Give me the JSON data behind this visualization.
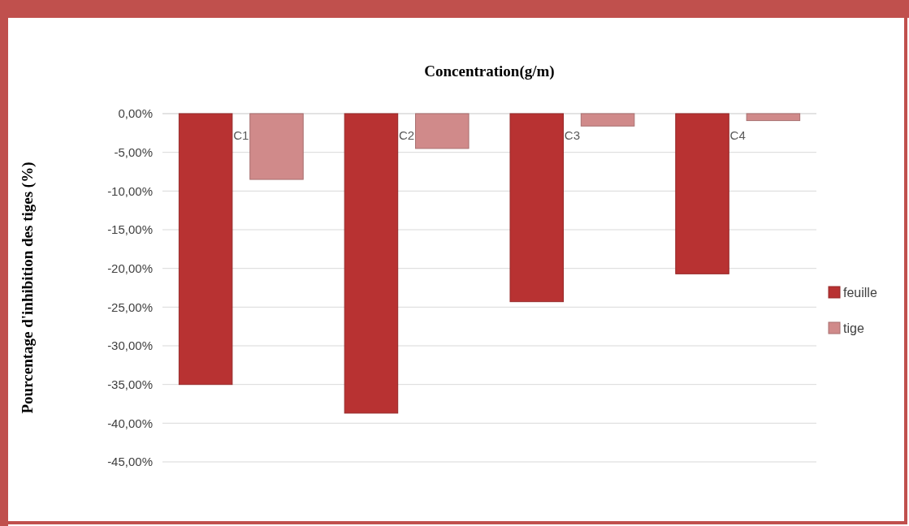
{
  "chart_data": {
    "type": "bar",
    "title": "Concentration(g/m)",
    "ylabel": "Pourcentage d'inhibition des tiges (%)",
    "categories": [
      "C1",
      "C2",
      "C3",
      "C4"
    ],
    "series": [
      {
        "name": "feuille",
        "color": "#b83232",
        "values": [
          -35.0,
          -38.7,
          -24.3,
          -20.7
        ]
      },
      {
        "name": "tige",
        "color": "#d08a8a",
        "values": [
          -8.5,
          -4.5,
          -1.6,
          -0.9
        ]
      }
    ],
    "ylim": [
      -45,
      0
    ],
    "yticks": [
      {
        "value": 0,
        "label": "0,00%"
      },
      {
        "value": -5,
        "label": "-5,00%"
      },
      {
        "value": -10,
        "label": "-10,00%"
      },
      {
        "value": -15,
        "label": "-15,00%"
      },
      {
        "value": -20,
        "label": "-20,00%"
      },
      {
        "value": -25,
        "label": "-25,00%"
      },
      {
        "value": -30,
        "label": "-30,00%"
      },
      {
        "value": -35,
        "label": "-35,00%"
      },
      {
        "value": -40,
        "label": "-40,00%"
      },
      {
        "value": -45,
        "label": "-45,00%"
      }
    ],
    "grid": "y",
    "legend": "right"
  }
}
